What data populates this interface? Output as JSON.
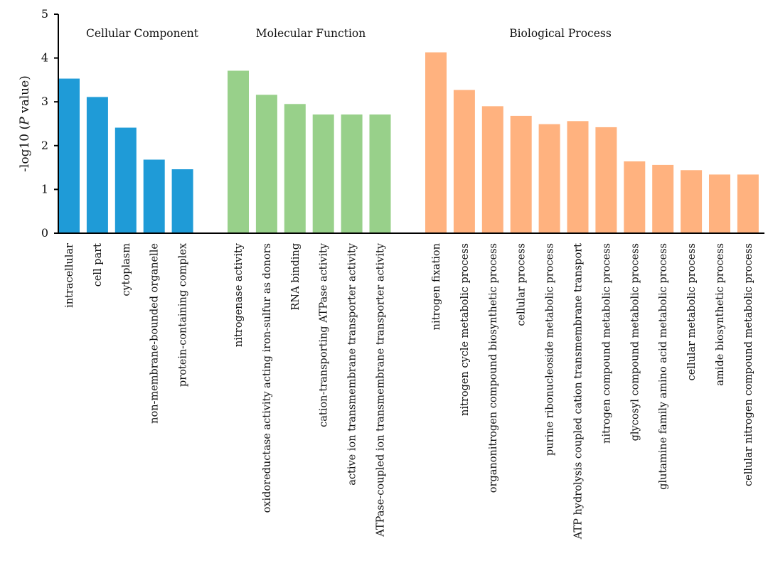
{
  "chart_data": {
    "type": "bar",
    "ylabel_prefix": "-log10 (",
    "ylabel_italic": "P",
    "ylabel_suffix": " value)",
    "ylim": [
      0,
      5
    ],
    "yticks": [
      "0",
      "1",
      "2",
      "3",
      "4",
      "5"
    ],
    "grid": false,
    "legend": "none",
    "groups": [
      {
        "name": "Cellular Component",
        "color": "#1f9bd7",
        "categories": [
          "intracellular",
          "cell part",
          "cytoplasm",
          "non-membrane-bounded organelle",
          "protein-containing complex"
        ],
        "values": [
          3.53,
          3.11,
          2.41,
          1.68,
          1.46
        ]
      },
      {
        "name": "Molecular Function",
        "color": "#98d08a",
        "categories": [
          "nitrogenase activity",
          "oxidoreductase activity acting iron-sulfur as donors",
          "RNA binding",
          "cation-transporting ATPase activity",
          "active ion transmembrane transporter activity",
          "ATPase-coupled ion transmembrane transporter activity"
        ],
        "values": [
          3.71,
          3.16,
          2.95,
          2.71,
          2.71,
          2.71
        ]
      },
      {
        "name": "Biological Process",
        "color": "#ffb27f",
        "categories": [
          "nitrogen fixation",
          "nitrogen cycle metabolic process",
          "organonitrogen compound biosynthetic process",
          "cellular process",
          "purine ribonucleoside metabolic process",
          "ATP hydrolysis coupled cation transmembrane transport",
          "nitrogen compound metabolic process",
          "glycosyl compound metabolic process",
          "glutamine family amino acid metabolic process",
          "cellular metabolic process",
          "amide biosynthetic process",
          "cellular nitrogen compound metabolic process"
        ],
        "values": [
          4.13,
          3.27,
          2.9,
          2.68,
          2.49,
          2.56,
          2.42,
          1.64,
          1.56,
          1.44,
          1.34,
          1.34
        ]
      }
    ]
  }
}
